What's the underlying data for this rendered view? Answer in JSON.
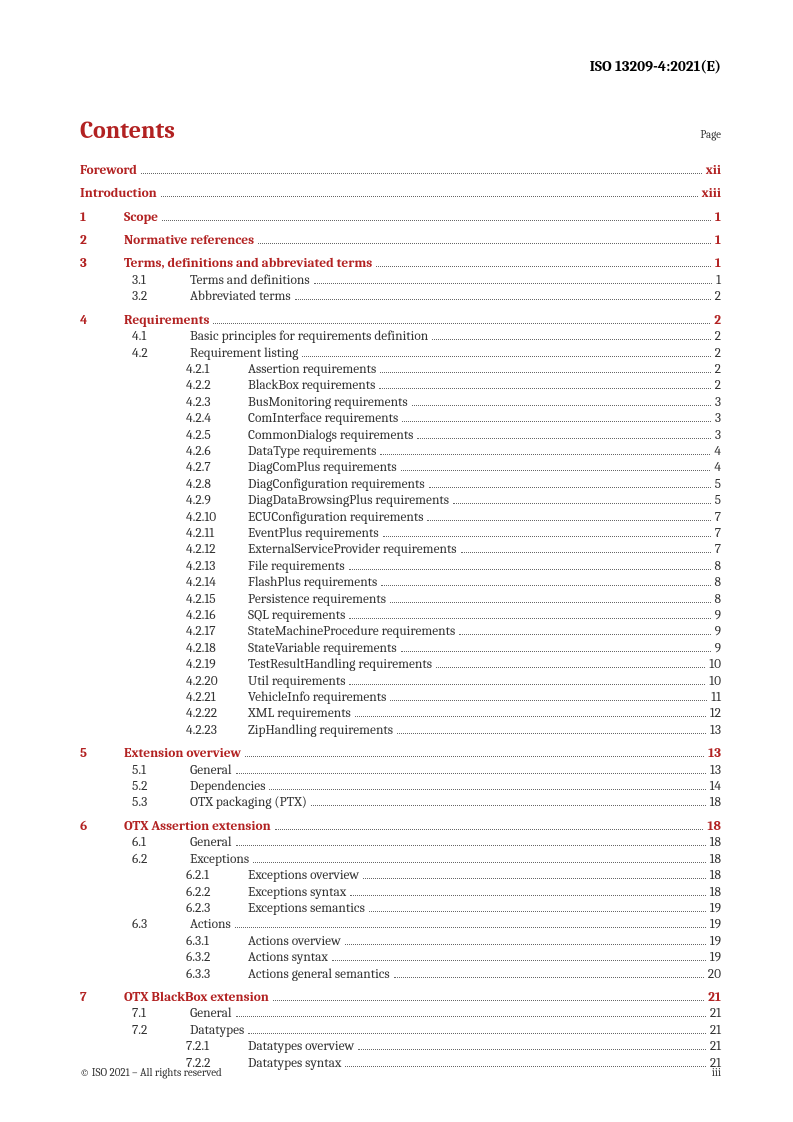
{
  "doc_id": "ISO 13209-4:2021(E)",
  "contents_title": "Contents",
  "page_label": "Page",
  "footer_left": "© ISO 2021 – All rights reserved",
  "footer_right": "iii",
  "toc": [
    {
      "level": 0,
      "bold": true,
      "num": "",
      "label": "Foreword",
      "page": "xii",
      "gap": false
    },
    {
      "level": 0,
      "bold": true,
      "num": "",
      "label": "Introduction",
      "page": "xiii",
      "gap": true
    },
    {
      "level": 1,
      "bold": true,
      "num": "1",
      "label": "Scope",
      "page": "1",
      "gap": true
    },
    {
      "level": 1,
      "bold": true,
      "num": "2",
      "label": "Normative references",
      "page": "1",
      "gap": true
    },
    {
      "level": 1,
      "bold": true,
      "num": "3",
      "label": "Terms, definitions and abbreviated terms",
      "page": "1",
      "gap": true
    },
    {
      "level": 2,
      "bold": false,
      "num": "3.1",
      "label": "Terms and definitions",
      "page": "1"
    },
    {
      "level": 2,
      "bold": false,
      "num": "3.2",
      "label": "Abbreviated terms",
      "page": "2"
    },
    {
      "level": 1,
      "bold": true,
      "num": "4",
      "label": "Requirements",
      "page": "2",
      "gap": true
    },
    {
      "level": 2,
      "bold": false,
      "num": "4.1",
      "label": "Basic principles for requirements definition",
      "page": "2"
    },
    {
      "level": 2,
      "bold": false,
      "num": "4.2",
      "label": "Requirement listing",
      "page": "2"
    },
    {
      "level": 3,
      "bold": false,
      "num": "4.2.1",
      "label": "Assertion requirements",
      "page": "2"
    },
    {
      "level": 3,
      "bold": false,
      "num": "4.2.2",
      "label": "BlackBox requirements",
      "page": "2"
    },
    {
      "level": 3,
      "bold": false,
      "num": "4.2.3",
      "label": "BusMonitoring requirements",
      "page": "3"
    },
    {
      "level": 3,
      "bold": false,
      "num": "4.2.4",
      "label": "ComInterface requirements",
      "page": "3"
    },
    {
      "level": 3,
      "bold": false,
      "num": "4.2.5",
      "label": "CommonDialogs requirements",
      "page": "3"
    },
    {
      "level": 3,
      "bold": false,
      "num": "4.2.6",
      "label": "DataType requirements",
      "page": "4"
    },
    {
      "level": 3,
      "bold": false,
      "num": "4.2.7",
      "label": "DiagComPlus requirements",
      "page": "4"
    },
    {
      "level": 3,
      "bold": false,
      "num": "4.2.8",
      "label": "DiagConfiguration requirements",
      "page": "5"
    },
    {
      "level": 3,
      "bold": false,
      "num": "4.2.9",
      "label": "DiagDataBrowsingPlus requirements",
      "page": "5"
    },
    {
      "level": 3,
      "bold": false,
      "num": "4.2.10",
      "label": "ECUConfiguration requirements",
      "page": "7"
    },
    {
      "level": 3,
      "bold": false,
      "num": "4.2.11",
      "label": "EventPlus requirements",
      "page": "7"
    },
    {
      "level": 3,
      "bold": false,
      "num": "4.2.12",
      "label": "ExternalServiceProvider requirements",
      "page": "7"
    },
    {
      "level": 3,
      "bold": false,
      "num": "4.2.13",
      "label": "File requirements",
      "page": "8"
    },
    {
      "level": 3,
      "bold": false,
      "num": "4.2.14",
      "label": "FlashPlus requirements",
      "page": "8"
    },
    {
      "level": 3,
      "bold": false,
      "num": "4.2.15",
      "label": "Persistence requirements",
      "page": "8"
    },
    {
      "level": 3,
      "bold": false,
      "num": "4.2.16",
      "label": "SQL requirements",
      "page": "9"
    },
    {
      "level": 3,
      "bold": false,
      "num": "4.2.17",
      "label": "StateMachineProcedure requirements",
      "page": "9"
    },
    {
      "level": 3,
      "bold": false,
      "num": "4.2.18",
      "label": "StateVariable requirements",
      "page": "9"
    },
    {
      "level": 3,
      "bold": false,
      "num": "4.2.19",
      "label": "TestResultHandling requirements",
      "page": "10"
    },
    {
      "level": 3,
      "bold": false,
      "num": "4.2.20",
      "label": "Util requirements",
      "page": "10"
    },
    {
      "level": 3,
      "bold": false,
      "num": "4.2.21",
      "label": "VehicleInfo requirements",
      "page": "11"
    },
    {
      "level": 3,
      "bold": false,
      "num": "4.2.22",
      "label": "XML requirements",
      "page": "12"
    },
    {
      "level": 3,
      "bold": false,
      "num": "4.2.23",
      "label": "ZipHandling requirements",
      "page": "13"
    },
    {
      "level": 1,
      "bold": true,
      "num": "5",
      "label": "Extension overview",
      "page": "13",
      "gap": true
    },
    {
      "level": 2,
      "bold": false,
      "num": "5.1",
      "label": "General",
      "page": "13"
    },
    {
      "level": 2,
      "bold": false,
      "num": "5.2",
      "label": "Dependencies",
      "page": "14"
    },
    {
      "level": 2,
      "bold": false,
      "num": "5.3",
      "label": "OTX packaging (PTX)",
      "page": "18"
    },
    {
      "level": 1,
      "bold": true,
      "num": "6",
      "label": "OTX Assertion extension",
      "page": "18",
      "gap": true
    },
    {
      "level": 2,
      "bold": false,
      "num": "6.1",
      "label": "General",
      "page": "18"
    },
    {
      "level": 2,
      "bold": false,
      "num": "6.2",
      "label": "Exceptions",
      "page": "18"
    },
    {
      "level": 3,
      "bold": false,
      "num": "6.2.1",
      "label": "Exceptions overview",
      "page": "18"
    },
    {
      "level": 3,
      "bold": false,
      "num": "6.2.2",
      "label": "Exceptions syntax",
      "page": "18"
    },
    {
      "level": 3,
      "bold": false,
      "num": "6.2.3",
      "label": "Exceptions semantics",
      "page": "19"
    },
    {
      "level": 2,
      "bold": false,
      "num": "6.3",
      "label": "Actions",
      "page": "19"
    },
    {
      "level": 3,
      "bold": false,
      "num": "6.3.1",
      "label": "Actions overview",
      "page": "19"
    },
    {
      "level": 3,
      "bold": false,
      "num": "6.3.2",
      "label": "Actions syntax",
      "page": "19"
    },
    {
      "level": 3,
      "bold": false,
      "num": "6.3.3",
      "label": "Actions general semantics",
      "page": "20"
    },
    {
      "level": 1,
      "bold": true,
      "num": "7",
      "label": "OTX BlackBox extension",
      "page": "21",
      "gap": true
    },
    {
      "level": 2,
      "bold": false,
      "num": "7.1",
      "label": "General",
      "page": "21"
    },
    {
      "level": 2,
      "bold": false,
      "num": "7.2",
      "label": "Datatypes",
      "page": "21"
    },
    {
      "level": 3,
      "bold": false,
      "num": "7.2.1",
      "label": "Datatypes overview",
      "page": "21"
    },
    {
      "level": 3,
      "bold": false,
      "num": "7.2.2",
      "label": "Datatypes syntax",
      "page": "21"
    }
  ],
  "colors": {
    "accent": "#b22222",
    "text": "#000000",
    "subtext": "#333333",
    "background": "#ffffff",
    "dots": "#666666"
  }
}
